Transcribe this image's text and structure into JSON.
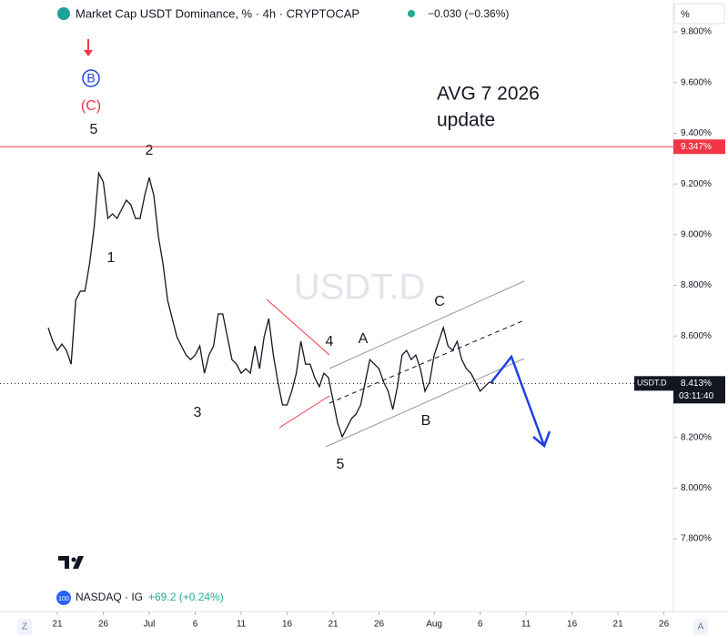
{
  "header": {
    "title": "Market Cap USDT Dominance, % · 4h · CRYPTOCAP",
    "change": "−0.030 (−0.36%)",
    "unit": "%"
  },
  "chart_data": {
    "type": "line",
    "watermark": "USDT.D",
    "x": [
      -1,
      -0.5,
      0,
      0.5,
      1,
      1.5,
      2,
      2.5,
      3,
      3.5,
      4,
      4.5,
      5,
      5.5,
      6,
      6.5,
      7,
      7.5,
      8,
      8.5,
      9,
      9.5,
      10,
      10.5,
      11,
      11.5,
      12,
      12.5,
      13,
      13.5,
      14,
      14.5,
      15,
      15.5,
      16,
      16.5,
      17,
      17.5,
      18,
      18.5,
      19,
      19.5,
      20,
      20.5,
      21,
      21.5,
      22,
      22.5,
      23,
      23.5,
      24,
      24.5,
      25,
      25.5,
      26,
      26.5,
      27,
      27.5,
      28,
      28.5,
      29,
      29.5,
      30,
      30.5,
      31,
      31.5,
      32,
      32.5,
      33,
      33.5,
      34,
      34.5,
      35,
      35.5,
      36,
      36.5,
      37,
      37.5,
      38,
      38.5,
      39,
      39.5,
      40,
      40.5,
      41,
      41.5,
      42,
      42.5,
      43,
      43.5,
      44,
      44.5,
      45,
      45.5,
      46,
      46.5,
      47,
      47.5
    ],
    "series": [
      {
        "name": "USDT.D",
        "color": "#131722",
        "values": [
          8.633,
          8.579,
          8.543,
          8.568,
          8.543,
          8.489,
          8.741,
          8.777,
          8.777,
          8.884,
          9.028,
          9.243,
          9.208,
          9.064,
          9.082,
          9.064,
          9.1,
          9.136,
          9.118,
          9.064,
          9.064,
          9.154,
          9.225,
          9.154,
          8.992,
          8.884,
          8.741,
          8.669,
          8.597,
          8.561,
          8.525,
          8.507,
          8.525,
          8.561,
          8.453,
          8.525,
          8.561,
          8.687,
          8.687,
          8.597,
          8.507,
          8.489,
          8.453,
          8.471,
          8.453,
          8.561,
          8.471,
          8.597,
          8.669,
          8.525,
          8.418,
          8.328,
          8.328,
          8.382,
          8.453,
          8.579,
          8.489,
          8.489,
          8.436,
          8.4,
          8.453,
          8.436,
          8.346,
          8.256,
          8.202,
          8.238,
          8.274,
          8.292,
          8.328,
          8.418,
          8.507,
          8.489,
          8.471,
          8.418,
          8.382,
          8.31,
          8.4,
          8.525,
          8.543,
          8.507,
          8.525,
          8.471,
          8.382,
          8.418,
          8.525,
          8.579,
          8.633,
          8.561,
          8.543,
          8.579,
          8.507,
          8.471,
          8.453,
          8.418,
          8.382,
          8.4,
          8.418,
          8.413
        ]
      }
    ],
    "xlim": [
      -6.24,
      67.03
    ],
    "ylim": [
      7.599,
      9.926
    ],
    "xticks": [
      {
        "value": 0,
        "label": "21"
      },
      {
        "value": 5,
        "label": "26"
      },
      {
        "value": 10,
        "label": "Jul"
      },
      {
        "value": 15,
        "label": "6"
      },
      {
        "value": 20,
        "label": "11"
      },
      {
        "value": 25,
        "label": "16"
      },
      {
        "value": 30,
        "label": "21"
      },
      {
        "value": 35,
        "label": "26"
      },
      {
        "value": 41,
        "label": "Aug"
      },
      {
        "value": 46,
        "label": "6"
      },
      {
        "value": 51,
        "label": "11"
      },
      {
        "value": 56,
        "label": "16"
      },
      {
        "value": 61,
        "label": "21"
      },
      {
        "value": 66,
        "label": "26"
      }
    ],
    "yticks": [
      {
        "value": 9.8,
        "label": "9.800%"
      },
      {
        "value": 9.6,
        "label": "9.600%"
      },
      {
        "value": 9.4,
        "label": "9.400%"
      },
      {
        "value": 9.2,
        "label": "9.200%"
      },
      {
        "value": 9,
        "label": "9.000%"
      },
      {
        "value": 8.8,
        "label": "8.800%"
      },
      {
        "value": 8.6,
        "label": "8.600%"
      },
      {
        "value": 8.4,
        "label": "8.400%"
      },
      {
        "value": 8.2,
        "label": "8.200%"
      },
      {
        "value": 8,
        "label": "8.000%"
      },
      {
        "value": 7.8,
        "label": "7.800%"
      }
    ],
    "grid": false,
    "hline": {
      "value": 9.347,
      "label": "9.347%",
      "color": "#f23645"
    },
    "last_price": {
      "value": 8.413,
      "label": "8.413%"
    },
    "countdown": "03:11:40",
    "annotations": {
      "note": [
        "AVG 7 2026",
        "update"
      ],
      "waves": [
        "B",
        "(C)",
        "5",
        "2",
        "1",
        "3",
        "4",
        "5",
        "A",
        "B",
        "C"
      ]
    }
  },
  "legend2": {
    "icon": "100",
    "name": "NASDAQ · IG",
    "change": "+69.2 (+0.24%)"
  },
  "footer": {
    "left": "Z",
    "right": "A"
  }
}
